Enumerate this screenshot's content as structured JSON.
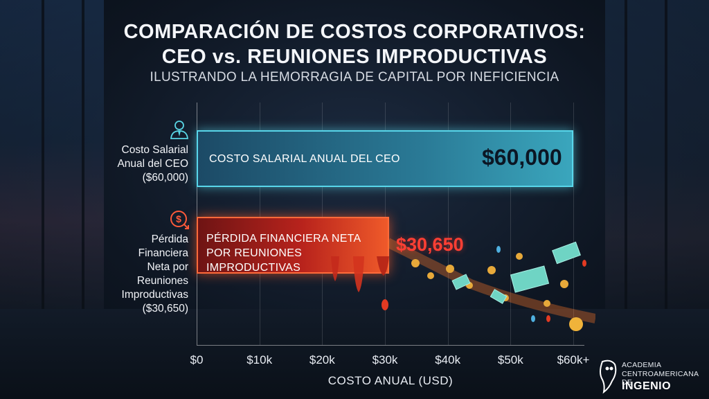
{
  "title_line1": "COMPARACIÓN DE COSTOS CORPORATIVOS:",
  "title_line2": "CEO vs. REUNIONES IMPRODUCTIVAS",
  "subtitle": "ILUSTRANDO LA HEMORRAGIA DE CAPITAL POR INEFICIENCIA",
  "chart_data": {
    "type": "bar",
    "orientation": "horizontal",
    "title": "COMPARACIÓN DE COSTOS CORPORATIVOS: CEO vs. REUNIONES IMPRODUCTIVAS",
    "subtitle": "ILUSTRANDO LA HEMORRAGIA DE CAPITAL POR INEFICIENCIA",
    "xlabel": "COSTO ANUAL (USD)",
    "ylabel": "",
    "xlim": [
      0,
      60000
    ],
    "xticks": [
      0,
      10000,
      20000,
      30000,
      40000,
      50000,
      60000
    ],
    "xtick_labels": [
      "$0",
      "$10k",
      "$20k",
      "$30k",
      "$40k",
      "$50k",
      "$60k+"
    ],
    "grid": "vertical",
    "categories": [
      "Costo Salarial Anual del CEO ($60,000)",
      "Pérdida Financiera Neta por Reuniones Improductivas ($30,650)"
    ],
    "values": [
      60000,
      30650
    ],
    "bar_labels": [
      "COSTO SALARIAL ANUAL DEL CEO",
      "PÉRDIDA FINANCIERA NETA POR REUNIONES IMPRODUCTIVAS"
    ],
    "value_labels": [
      "$60,000",
      "$30,650"
    ],
    "colors": [
      "#2a7a96",
      "#d0301f"
    ]
  },
  "category_labels": {
    "ceo": [
      "Costo Salarial",
      "Anual del CEO",
      "($60,000)"
    ],
    "loss": [
      "Pérdida",
      "Financiera",
      "Neta por",
      "Reuniones",
      "Improductivas",
      "($30,650)"
    ]
  },
  "icons": {
    "ceo": "businessman-icon",
    "loss": "money-loss-icon"
  },
  "logo": {
    "line1": "ACADEMIA",
    "line2": "CENTROAMERICANA DE",
    "line3": "INGENIO"
  }
}
